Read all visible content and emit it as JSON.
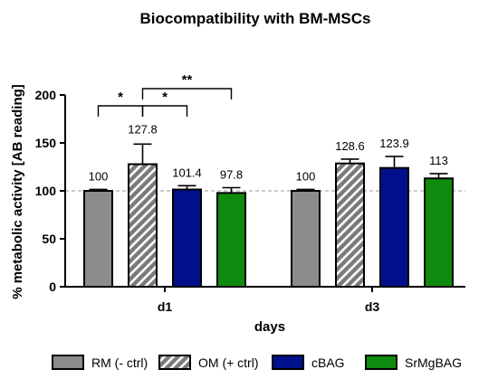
{
  "chart_data": {
    "type": "bar",
    "title": "Biocompatibility with BM-MSCs",
    "xlabel": "days",
    "ylabel": "% metabolic activity [AB reading]",
    "ylim": [
      0,
      200
    ],
    "yticks": [
      0,
      50,
      100,
      150,
      200
    ],
    "reference_line": 100,
    "categories": [
      "d1",
      "d3"
    ],
    "series": [
      {
        "name": "RM (- ctrl)",
        "color": "#8c8c8c",
        "pattern": "solid",
        "values": [
          100,
          100
        ],
        "errors": [
          1.5,
          1.5
        ],
        "labels": [
          "100",
          "100"
        ]
      },
      {
        "name": "OM (+ ctrl)",
        "color": "#7a7a7a",
        "pattern": "hatched",
        "values": [
          127.8,
          128.6
        ],
        "errors": [
          21,
          4.5
        ],
        "labels": [
          "127.8",
          "128.6"
        ]
      },
      {
        "name": "cBAG",
        "color": "#000f8a",
        "pattern": "solid",
        "values": [
          101.4,
          123.9
        ],
        "errors": [
          4,
          12
        ],
        "labels": [
          "101.4",
          "123.9"
        ]
      },
      {
        "name": "SrMgBAG",
        "color": "#0e8a0e",
        "pattern": "solid",
        "values": [
          97.8,
          113
        ],
        "errors": [
          5.5,
          5
        ],
        "labels": [
          "97.8",
          "113"
        ]
      }
    ],
    "significance": [
      {
        "group": "d1",
        "from_series": 0,
        "to_series": 1,
        "label": "*"
      },
      {
        "group": "d1",
        "from_series": 1,
        "to_series": 2,
        "label": "*"
      },
      {
        "group": "d1",
        "from_series": 1,
        "to_series": 3,
        "label": "**"
      }
    ],
    "legend_position": "bottom"
  }
}
